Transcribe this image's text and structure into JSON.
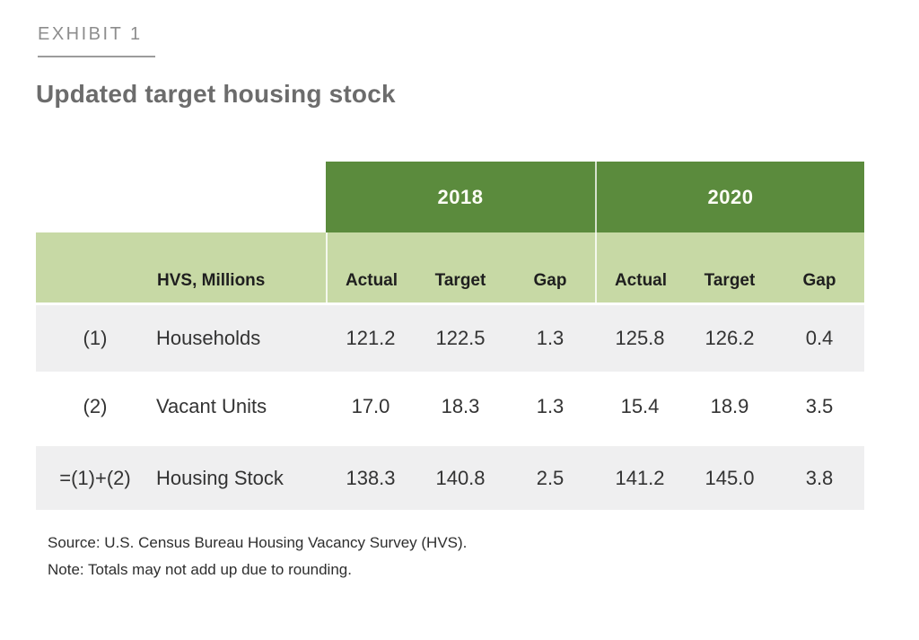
{
  "exhibit": {
    "label": "EXHIBIT 1",
    "title": "Updated target housing stock"
  },
  "table": {
    "year_headers": [
      "2018",
      "2020"
    ],
    "label_header": "HVS, Millions",
    "sub_headers": [
      "Actual",
      "Target",
      "Gap",
      "Actual",
      "Target",
      "Gap"
    ],
    "rows": [
      {
        "id": "(1)",
        "name": "Households",
        "values": [
          "121.2",
          "122.5",
          "1.3",
          "125.8",
          "126.2",
          "0.4"
        ]
      },
      {
        "id": "(2)",
        "name": "Vacant Units",
        "values": [
          "17.0",
          "18.3",
          "1.3",
          "15.4",
          "18.9",
          "3.5"
        ]
      },
      {
        "id": "=(1)+(2)",
        "name": "Housing Stock",
        "values": [
          "138.3",
          "140.8",
          "2.5",
          "141.2",
          "145.0",
          "3.8"
        ]
      }
    ]
  },
  "footer": {
    "source": "Source: U.S. Census Bureau Housing Vacancy Survey (HVS).",
    "note": "Note: Totals may not add up due to rounding."
  },
  "colors": {
    "dark_green": "#5b8b3d",
    "light_green": "#c7d9a5",
    "row_gray": "#efeff0"
  }
}
